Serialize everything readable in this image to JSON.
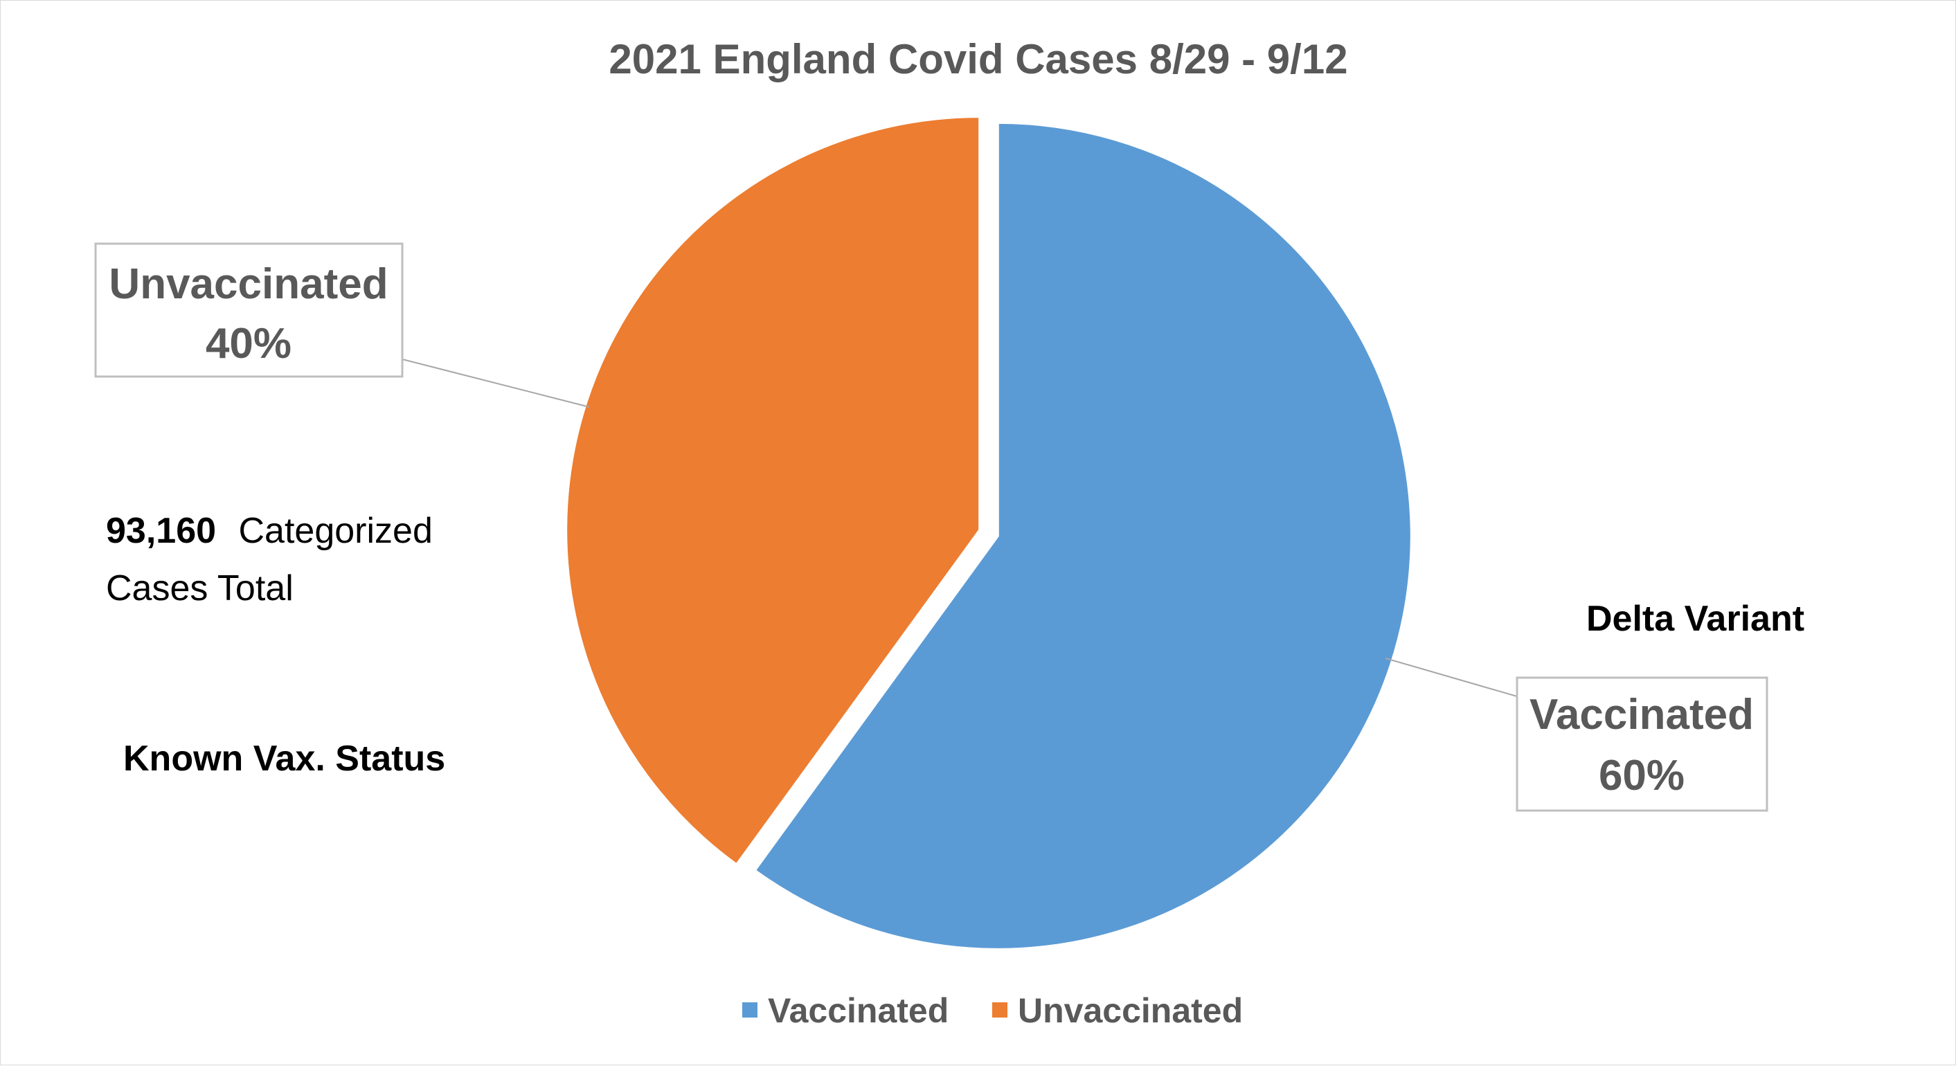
{
  "chart_data": {
    "type": "pie",
    "title": "2021 England Covid Cases 8/29 - 9/12",
    "slices": [
      {
        "label": "Vaccinated",
        "value": 60,
        "percent_label": "60%",
        "color": "#5B9BD5"
      },
      {
        "label": "Unvaccinated",
        "value": 40,
        "percent_label": "40%",
        "color": "#ED7D31"
      }
    ],
    "legend": {
      "position": "bottom",
      "entries": [
        "Vaccinated",
        "Unvaccinated"
      ]
    },
    "annotations": {
      "total_number": "93,160",
      "total_suffix": "Categorized",
      "total_line2": "Cases Total",
      "status": "Known Vax. Status",
      "variant": "Delta Variant"
    }
  }
}
